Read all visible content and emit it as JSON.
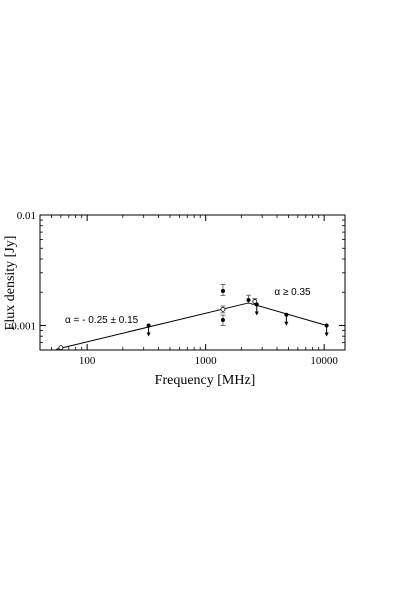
{
  "chart_data": {
    "type": "scatter",
    "x_scale": "log",
    "y_scale": "log",
    "xlim": [
      40,
      15000
    ],
    "ylim": [
      0.0006,
      0.01
    ],
    "xlabel": "Frequency [MHz]",
    "ylabel": "Flux density [Jy]",
    "x_ticks": [
      {
        "value": 100,
        "label": "100"
      },
      {
        "value": 1000,
        "label": "1000"
      },
      {
        "value": 10000,
        "label": "10000"
      }
    ],
    "y_ticks": [
      {
        "value": 0.001,
        "label": "0.001"
      },
      {
        "value": 0.01,
        "label": "0.01"
      }
    ],
    "grid": false,
    "detections": [
      {
        "x": 1400,
        "y": 0.00205,
        "yerr_low": 0.00018,
        "yerr_high": 0.0003
      },
      {
        "x": 1400,
        "y": 0.00112,
        "yerr_low": 0.00012,
        "yerr_high": 0.00012
      },
      {
        "x": 2300,
        "y": 0.0017,
        "yerr_low": 0.00012,
        "yerr_high": 0.00018
      }
    ],
    "open_detections": [
      {
        "x": 1400,
        "y": 0.0014,
        "yerr_low": 0.0001,
        "yerr_high": 0.0001
      },
      {
        "x": 2600,
        "y": 0.00165,
        "yerr_low": 0.0001,
        "yerr_high": 0.0001
      },
      {
        "x": 60,
        "y": 0.00063
      }
    ],
    "upper_limits": [
      {
        "x": 330,
        "y": 0.001
      },
      {
        "x": 2700,
        "y": 0.00155
      },
      {
        "x": 4800,
        "y": 0.00125
      },
      {
        "x": 10500,
        "y": 0.001
      }
    ],
    "fit_lines": [
      {
        "x": [
          55,
          2300
        ],
        "y": [
          0.00061,
          0.0016
        ]
      },
      {
        "x": [
          2300,
          10500
        ],
        "y": [
          0.0016,
          0.001
        ]
      }
    ],
    "annotations": [
      {
        "text": "α = - 0.25 ± 0.15",
        "x": 65,
        "y": 0.00105
      },
      {
        "text": "α ≥ 0.35",
        "x": 3800,
        "y": 0.00188
      }
    ]
  }
}
